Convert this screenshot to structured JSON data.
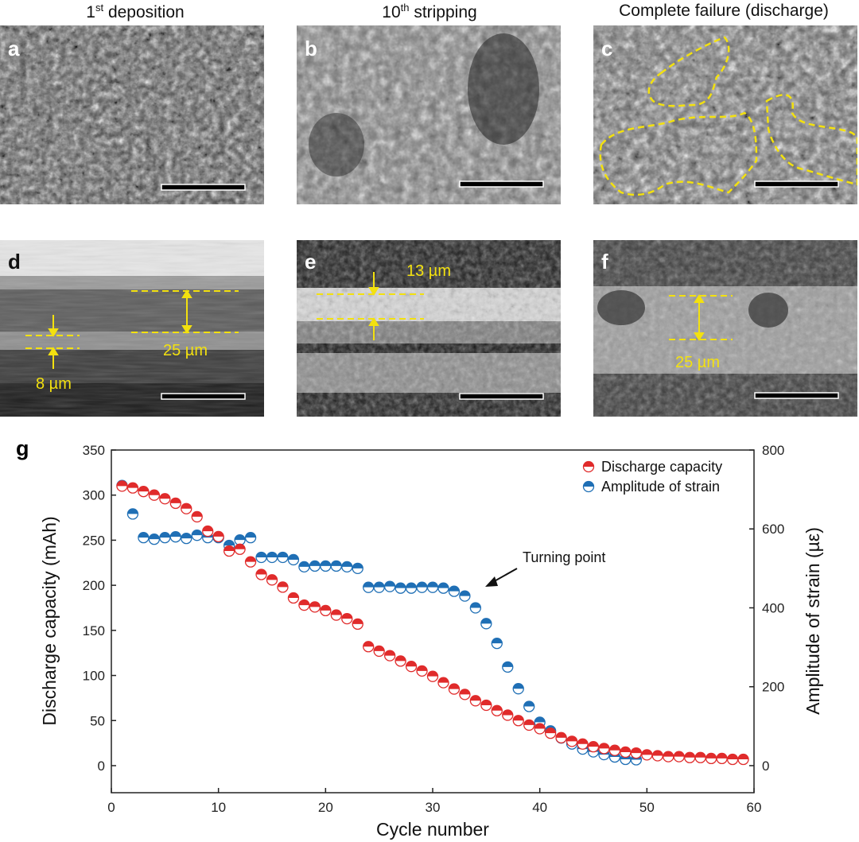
{
  "titles": {
    "a": {
      "main": "1",
      "sup": "st",
      "rest": " deposition"
    },
    "b": {
      "main": "10",
      "sup": "th",
      "rest": " stripping"
    },
    "c": {
      "main": "Complete failure (discharge)",
      "sup": "",
      "rest": ""
    }
  },
  "panels": {
    "a": "a",
    "b": "b",
    "c": "c",
    "d": "d",
    "e": "e",
    "f": "f"
  },
  "annotations": {
    "d_top": "25 µm",
    "d_bottom": "8 µm",
    "e": "13 µm",
    "f": "25 µm"
  },
  "g_label": "g",
  "colors": {
    "annotation": "#f3e10f",
    "discharge": "#e02b2b",
    "strain": "#1f6fb5"
  },
  "chart_data": {
    "type": "scatter",
    "xlabel": "Cycle number",
    "ylabel": "Discharge capacity (mAh)",
    "y2label": "Amplitude of strain (µε)",
    "xlim": [
      0,
      60
    ],
    "ylim": [
      -30,
      350
    ],
    "y2lim": [
      -68.6,
      800
    ],
    "xticks": [
      0,
      10,
      20,
      30,
      40,
      50,
      60
    ],
    "yticks": [
      0,
      50,
      100,
      150,
      200,
      250,
      300,
      350
    ],
    "y2ticks": [
      0,
      200,
      400,
      600,
      800
    ],
    "annotation": {
      "text": "Turning point",
      "x": 35,
      "y2": 460
    },
    "legend_position": "top-right",
    "series": [
      {
        "name": "Discharge capacity",
        "axis": "left",
        "x": [
          1,
          2,
          3,
          4,
          5,
          6,
          7,
          8,
          9,
          10,
          11,
          12,
          13,
          14,
          15,
          16,
          17,
          18,
          19,
          20,
          21,
          22,
          23,
          24,
          25,
          26,
          27,
          28,
          29,
          30,
          31,
          32,
          33,
          34,
          35,
          36,
          37,
          38,
          39,
          40,
          41,
          42,
          43,
          44,
          45,
          46,
          47,
          48,
          49,
          50,
          51,
          52,
          53,
          54,
          55,
          56,
          57,
          58,
          59
        ],
        "values": [
          310,
          308,
          304,
          300,
          296,
          291,
          285,
          276,
          260,
          254,
          238,
          240,
          226,
          212,
          206,
          198,
          186,
          178,
          176,
          172,
          167,
          163,
          157,
          132,
          127,
          122,
          116,
          110,
          105,
          99,
          92,
          85,
          79,
          72,
          67,
          61,
          56,
          50,
          45,
          41,
          36,
          31,
          27,
          24,
          21,
          19,
          17,
          15,
          14,
          12,
          11,
          10,
          10,
          9,
          9,
          8,
          8,
          7,
          7
        ]
      },
      {
        "name": "Amplitude of strain",
        "axis": "right",
        "x": [
          1,
          2,
          3,
          4,
          5,
          6,
          7,
          8,
          9,
          10,
          11,
          12,
          13,
          14,
          15,
          16,
          17,
          18,
          19,
          20,
          21,
          22,
          23,
          24,
          25,
          26,
          27,
          28,
          29,
          30,
          31,
          32,
          33,
          34,
          35,
          36,
          37,
          38,
          39,
          40,
          41,
          42,
          43,
          44,
          45,
          46,
          47,
          48,
          49
        ],
        "values": [
          710,
          638,
          578,
          574,
          578,
          580,
          576,
          584,
          578,
          578,
          558,
          572,
          578,
          528,
          528,
          528,
          522,
          504,
          506,
          506,
          506,
          504,
          500,
          452,
          452,
          454,
          450,
          450,
          452,
          452,
          450,
          442,
          430,
          400,
          360,
          310,
          250,
          195,
          150,
          110,
          88,
          70,
          55,
          42,
          35,
          28,
          22,
          16,
          15
        ]
      }
    ]
  }
}
